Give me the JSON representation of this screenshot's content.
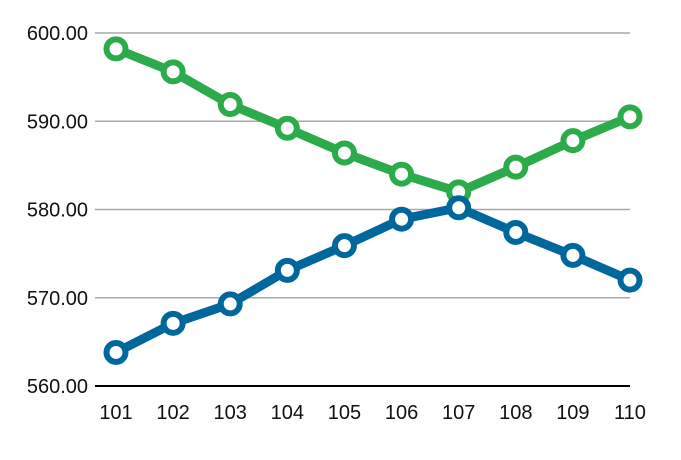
{
  "chart_data": {
    "type": "line",
    "title": "",
    "xlabel": "",
    "ylabel": "",
    "categories": [
      "101",
      "102",
      "103",
      "104",
      "105",
      "106",
      "107",
      "108",
      "109",
      "110"
    ],
    "series": [
      {
        "color": "#2bab4a",
        "values": [
          598.2,
          595.6,
          591.9,
          589.2,
          586.4,
          584.0,
          582.0,
          584.8,
          587.8,
          590.5
        ]
      },
      {
        "color": "#00679d",
        "values": [
          563.8,
          567.1,
          569.3,
          573.1,
          575.9,
          578.9,
          580.2,
          577.4,
          574.8,
          572.0
        ]
      }
    ],
    "ylim": [
      560,
      600
    ],
    "y_ticks": [
      "560.00",
      "570.00",
      "580.00",
      "590.00",
      "600.00"
    ],
    "grid": true,
    "legend": "none"
  }
}
